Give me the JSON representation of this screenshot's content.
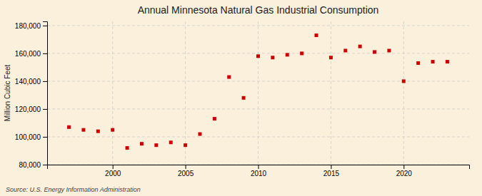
{
  "chart_data": {
    "type": "scatter",
    "title": "Annual Minnesota Natural Gas Industrial Consumption",
    "ylabel": "Million Cubic Feet",
    "annotation": "Source: U.S. Energy Information Administration",
    "x": [
      1997,
      1998,
      1999,
      2000,
      2001,
      2002,
      2003,
      2004,
      2005,
      2006,
      2007,
      2008,
      2009,
      2010,
      2011,
      2012,
      2013,
      2014,
      2015,
      2016,
      2017,
      2018,
      2019,
      2020,
      2021,
      2022,
      2023
    ],
    "values": [
      107000,
      105000,
      104000,
      105000,
      92000,
      95000,
      94000,
      96000,
      94000,
      102000,
      113000,
      143000,
      128000,
      158000,
      157000,
      159000,
      160000,
      173000,
      157000,
      162000,
      165000,
      161000,
      162000,
      140000,
      153000,
      154000,
      154000
    ],
    "color": "#cc0000",
    "marker": "square",
    "xlim": [
      1995.5,
      2024.5
    ],
    "xticks": [
      2000,
      2005,
      2010,
      2015,
      2020
    ],
    "ylim": [
      80000,
      183000
    ],
    "yticks": [
      {
        "value": 80000,
        "label": "80,000"
      },
      {
        "value": 100000,
        "label": "100,000"
      },
      {
        "value": 120000,
        "label": "120,000"
      },
      {
        "value": 140000,
        "label": "140,000"
      },
      {
        "value": 160000,
        "label": "160,000"
      },
      {
        "value": 180000,
        "label": "180,000"
      }
    ],
    "grid": true
  }
}
